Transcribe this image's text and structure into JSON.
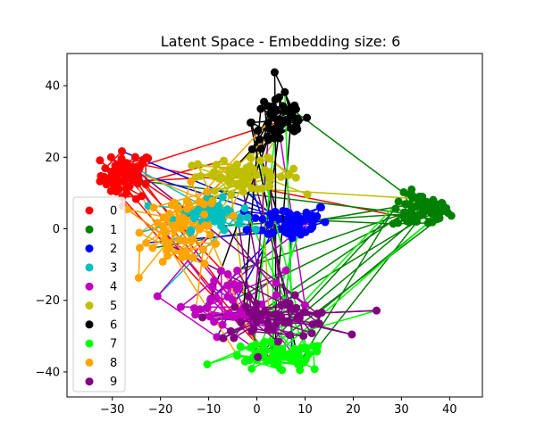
{
  "chart_data": {
    "type": "scatter",
    "title": "Latent Space - Embedding size: 6",
    "xlabel": "",
    "ylabel": "",
    "xlim": [
      -39.4,
      46.8
    ],
    "ylim": [
      -47.0,
      49.0
    ],
    "x_ticks": [
      -30,
      -20,
      -10,
      0,
      10,
      20,
      30,
      40
    ],
    "y_ticks": [
      -40,
      -20,
      0,
      20,
      40
    ],
    "x_tick_labels": [
      "−30",
      "−20",
      "−10",
      "0",
      "10",
      "20",
      "30",
      "40"
    ],
    "y_tick_labels": [
      "−40",
      "−20",
      "0",
      "20",
      "40"
    ],
    "grid": false,
    "legend_position": "lower-left",
    "connect_points": true,
    "series": [
      {
        "name": "0",
        "color": "#ff0000",
        "center": [
          -27,
          15
        ],
        "spread": [
          4.5,
          5.5
        ],
        "count": 60
      },
      {
        "name": "1",
        "color": "#008000",
        "center": [
          34,
          5
        ],
        "spread": [
          5,
          4
        ],
        "count": 60
      },
      {
        "name": "2",
        "color": "#0000ff",
        "center": [
          7,
          2
        ],
        "spread": [
          7,
          4.5
        ],
        "count": 55
      },
      {
        "name": "3",
        "color": "#00bfbf",
        "center": [
          -10,
          4
        ],
        "spread": [
          6,
          3.5
        ],
        "count": 45
      },
      {
        "name": "4",
        "color": "#bf00bf",
        "center": [
          -5,
          -20
        ],
        "spread": [
          9,
          8
        ],
        "count": 40
      },
      {
        "name": "5",
        "color": "#bfbf00",
        "center": [
          -3,
          15
        ],
        "spread": [
          10,
          3.5
        ],
        "count": 55
      },
      {
        "name": "6",
        "color": "#000000",
        "center": [
          5,
          30
        ],
        "spread": [
          5,
          7
        ],
        "count": 55
      },
      {
        "name": "7",
        "color": "#00ff00",
        "center": [
          4,
          -36
        ],
        "spread": [
          9,
          3.5
        ],
        "count": 60
      },
      {
        "name": "8",
        "color": "#ffa500",
        "center": [
          -15,
          0
        ],
        "spread": [
          7,
          9
        ],
        "count": 60
      },
      {
        "name": "9",
        "color": "#800080",
        "center": [
          4,
          -25
        ],
        "spread": [
          11,
          4.5
        ],
        "count": 55
      }
    ]
  }
}
